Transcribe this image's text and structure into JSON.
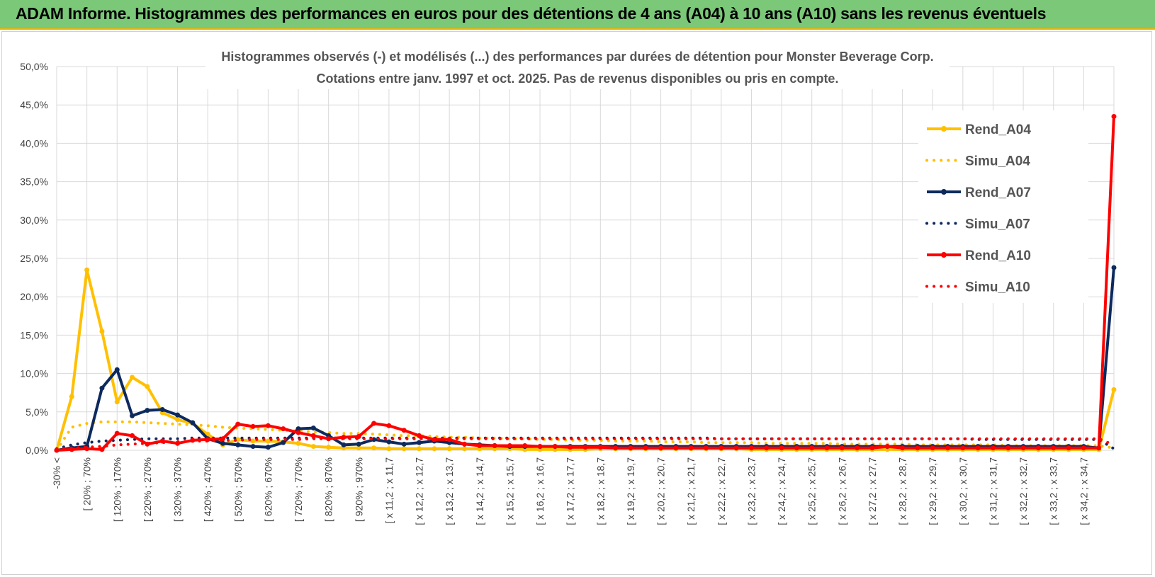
{
  "header": {
    "title": "ADAM Informe. Histogrammes des performances en euros pour des détentions de 4 ans (A04) à 10 ans (A10) sans les revenus éventuels"
  },
  "chart_data": {
    "type": "line",
    "title_line1": "Histogrammes observés (-) et modélisés (...) des performances par durées de détention pour Monster Beverage Corp.",
    "title_line2": "Cotations entre janv. 1997 et oct. 2025. Pas de revenus disponibles ou pris en compte.",
    "xlabel": "",
    "ylabel": "",
    "ylim": [
      0,
      50
    ],
    "ytick_labels": [
      "0,0%",
      "5,0%",
      "10,0%",
      "15,0%",
      "20,0%",
      "25,0%",
      "30,0%",
      "35,0%",
      "40,0%",
      "45,0%",
      "50,0%"
    ],
    "grid": "vertical and horizontal",
    "legend_position": "right",
    "xtick_labels": [
      "-30% <",
      "[ 20% ; 70%",
      "[ 120% ; 170%",
      "[ 220% ; 270%",
      "[ 320% ; 370%",
      "[ 420% ; 470%",
      "[ 520% ; 570%",
      "[ 620% ; 670%",
      "[ 720% ; 770%",
      "[ 820% ; 870%",
      "[ 920% ; 970%",
      "[ x 11,2 ; x 11,7",
      "[ x 12,2 ; x 12,7",
      "[ x 13,2 ; x 13,7",
      "[ x 14,2 ; x 14,7",
      "[ x 15,2 ; x 15,7",
      "[ x 16,2 ; x 16,7",
      "[ x 17,2 ; x 17,7",
      "[ x 18,2 ; x 18,7",
      "[ x 19,2 ; x 19,7",
      "[ x 20,2 ; x 20,7",
      "[ x 21,2 ; x 21,7",
      "[ x 22,2 ; x 22,7",
      "[ x 23,2 ; x 23,7",
      "[ x 24,2 ; x 24,7",
      "[ x 25,2 ; x 25,7",
      "[ x 26,2 ; x 26,7",
      "[ x 27,2 ; x 27,7",
      "[ x 28,2 ; x 28,7",
      "[ x 29,2 ; x 29,7",
      "[ x 30,2 ; x 30,7",
      "[ x 31,2 ; x 31,7",
      "[ x 32,2 ; x 32,7",
      "[ x 33,2 ; x 33,7",
      "[ x 34,2 ; x 34,7"
    ],
    "series": [
      {
        "name": "Rend_A04",
        "color": "#ffc000",
        "style": "solid",
        "values": [
          0,
          7.0,
          23.5,
          15.5,
          6.3,
          9.5,
          8.3,
          4.9,
          4.0,
          3.5,
          2.1,
          0.7,
          1.4,
          1.2,
          1.2,
          1.1,
          0.9,
          0.5,
          0.4,
          0.3,
          0.3,
          0.3,
          0.2,
          0.2,
          0.2,
          0.2,
          0.2,
          0.2,
          0.2,
          0.2,
          0.2,
          0.1,
          0.1,
          0.1,
          0.1,
          0.1,
          0.2,
          0.2,
          0.2,
          0.2,
          0.2,
          0.2,
          0.2,
          0.2,
          0.2,
          0.2,
          0.1,
          0.1,
          0.1,
          0.1,
          0.1,
          0.1,
          0.1,
          0.1,
          0.1,
          0.1,
          0.1,
          0.1,
          0.1,
          0.1,
          0.1,
          0.1,
          0.1,
          0.1,
          0.1,
          0.1,
          0.1,
          0.1,
          0.1,
          0.1,
          7.9
        ]
      },
      {
        "name": "Simu_A04",
        "color": "#ffc000",
        "style": "dotted",
        "values": [
          0,
          3.0,
          3.5,
          3.7,
          3.7,
          3.7,
          3.6,
          3.5,
          3.4,
          3.3,
          3.2,
          3.0,
          2.9,
          2.8,
          2.7,
          2.6,
          2.5,
          2.4,
          2.3,
          2.2,
          2.2,
          2.1,
          2.0,
          1.9,
          1.9,
          1.8,
          1.7,
          1.7,
          1.6,
          1.6,
          1.5,
          1.5,
          1.4,
          1.4,
          1.3,
          1.3,
          1.3,
          1.2,
          1.2,
          1.2,
          1.1,
          1.1,
          1.1,
          1.0,
          1.0,
          1.0,
          1.0,
          0.9,
          0.9,
          0.9,
          0.9,
          0.9,
          0.8,
          0.8,
          0.8,
          0.8,
          0.8,
          0.7,
          0.7,
          0.7,
          0.7,
          0.7,
          0.7,
          0.6,
          0.6,
          0.6,
          0.6,
          0.6,
          0.6,
          0.6,
          0.3
        ]
      },
      {
        "name": "Rend_A07",
        "color": "#0d2a5e",
        "style": "solid",
        "values": [
          0,
          0.3,
          0.5,
          8.1,
          10.5,
          4.5,
          5.2,
          5.3,
          4.6,
          3.6,
          1.5,
          0.9,
          0.7,
          0.5,
          0.4,
          1.0,
          2.8,
          2.9,
          1.9,
          0.7,
          0.8,
          1.4,
          1.1,
          0.8,
          1.0,
          1.2,
          1.0,
          0.8,
          0.7,
          0.6,
          0.5,
          0.5,
          0.5,
          0.5,
          0.5,
          0.5,
          0.5,
          0.5,
          0.5,
          0.5,
          0.5,
          0.5,
          0.5,
          0.5,
          0.5,
          0.5,
          0.5,
          0.5,
          0.5,
          0.5,
          0.5,
          0.5,
          0.5,
          0.5,
          0.5,
          0.5,
          0.5,
          0.5,
          0.5,
          0.5,
          0.5,
          0.5,
          0.5,
          0.5,
          0.5,
          0.5,
          0.5,
          0.5,
          0.5,
          0.3,
          23.8
        ]
      },
      {
        "name": "Simu_A07",
        "color": "#0d2a5e",
        "style": "dotted",
        "values": [
          0.2,
          0.7,
          1.0,
          1.2,
          1.3,
          1.4,
          1.5,
          1.5,
          1.5,
          1.6,
          1.6,
          1.6,
          1.6,
          1.6,
          1.6,
          1.6,
          1.6,
          1.6,
          1.6,
          1.6,
          1.6,
          1.6,
          1.6,
          1.6,
          1.6,
          1.6,
          1.6,
          1.6,
          1.6,
          1.6,
          1.6,
          1.6,
          1.6,
          1.6,
          1.6,
          1.6,
          1.6,
          1.6,
          1.6,
          1.6,
          1.6,
          1.6,
          1.6,
          1.6,
          1.5,
          1.5,
          1.5,
          1.5,
          1.5,
          1.5,
          1.5,
          1.5,
          1.5,
          1.5,
          1.5,
          1.5,
          1.5,
          1.5,
          1.5,
          1.5,
          1.5,
          1.4,
          1.4,
          1.4,
          1.4,
          1.4,
          1.4,
          1.4,
          1.4,
          1.4,
          0.2
        ]
      },
      {
        "name": "Rend_A10",
        "color": "#ff0000",
        "style": "solid",
        "values": [
          0,
          0.1,
          0.2,
          0.1,
          2.2,
          1.9,
          0.8,
          1.2,
          0.9,
          1.3,
          1.4,
          1.5,
          3.4,
          3.1,
          3.2,
          2.8,
          2.3,
          1.9,
          1.5,
          1.7,
          1.8,
          3.5,
          3.2,
          2.6,
          1.9,
          1.4,
          1.4,
          0.8,
          0.6,
          0.6,
          0.6,
          0.6,
          0.5,
          0.5,
          0.4,
          0.4,
          0.4,
          0.3,
          0.3,
          0.3,
          0.3,
          0.3,
          0.3,
          0.3,
          0.3,
          0.3,
          0.3,
          0.3,
          0.3,
          0.3,
          0.3,
          0.3,
          0.3,
          0.3,
          0.3,
          0.5,
          0.3,
          0.3,
          0.3,
          0.3,
          0.3,
          0.3,
          0.3,
          0.3,
          0.3,
          0.3,
          0.3,
          0.3,
          0.3,
          0.3,
          43.5
        ]
      },
      {
        "name": "Simu_A10",
        "color": "#ff0000",
        "style": "dotted",
        "values": [
          0.1,
          0.3,
          0.4,
          0.5,
          0.7,
          0.8,
          0.9,
          1.0,
          1.1,
          1.2,
          1.2,
          1.3,
          1.3,
          1.4,
          1.4,
          1.4,
          1.4,
          1.5,
          1.5,
          1.5,
          1.5,
          1.5,
          1.5,
          1.5,
          1.5,
          1.5,
          1.5,
          1.5,
          1.5,
          1.5,
          1.5,
          1.5,
          1.5,
          1.5,
          1.5,
          1.5,
          1.5,
          1.5,
          1.5,
          1.5,
          1.5,
          1.5,
          1.5,
          1.5,
          1.5,
          1.5,
          1.5,
          1.5,
          1.5,
          1.5,
          1.5,
          1.5,
          1.5,
          1.5,
          1.5,
          1.5,
          1.5,
          1.5,
          1.5,
          1.5,
          1.5,
          1.5,
          1.5,
          1.5,
          1.5,
          1.5,
          1.5,
          1.5,
          1.5,
          1.5,
          0.7
        ]
      }
    ]
  }
}
